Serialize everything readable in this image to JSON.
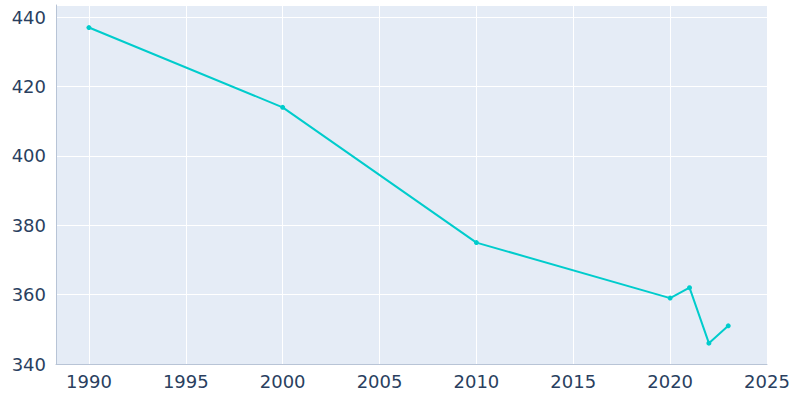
{
  "chart_data": {
    "type": "line",
    "x": [
      1990,
      2000,
      2010,
      2020,
      2021,
      2022,
      2023
    ],
    "values": [
      437,
      414,
      375,
      359,
      362,
      346,
      351
    ],
    "color": "#00cccc",
    "marker": "circle",
    "xlim": [
      1988.3,
      2025
    ],
    "xticks": [
      1990,
      1995,
      2000,
      2005,
      2010,
      2015,
      2020,
      2025
    ],
    "ylim": [
      340,
      443.5
    ],
    "yticks": [
      340,
      360,
      380,
      400,
      420,
      440
    ],
    "grid": true
  }
}
